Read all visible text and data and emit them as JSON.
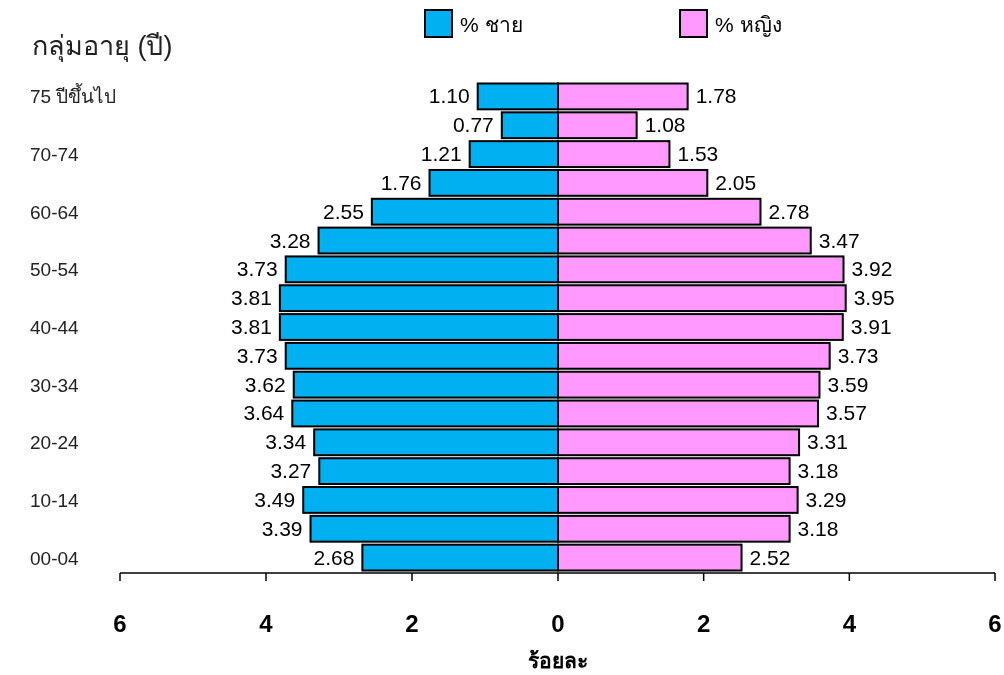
{
  "chart_data": [
    {
      "type": "bar",
      "orientation": "horizontal",
      "title": "กลุ่มอายุ (ปี)",
      "xlabel": "ร้อยละ",
      "categories": [
        "75 ปีขึ้นไป",
        null,
        "70-74",
        null,
        "60-64",
        null,
        "50-54",
        null,
        "40-44",
        null,
        "30-34",
        null,
        "20-24",
        null,
        "10-14",
        null,
        "00-04"
      ],
      "series": [
        {
          "name": "% ชาย",
          "color": "#00b0f0",
          "values": [
            1.1,
            0.77,
            1.21,
            1.76,
            2.55,
            3.28,
            3.73,
            3.81,
            3.81,
            3.73,
            3.62,
            3.64,
            3.34,
            3.27,
            3.49,
            3.39,
            2.68
          ],
          "value_labels": [
            "1.10",
            "0.77",
            "1.21",
            "1.76",
            "2.55",
            "3.28",
            "3.73",
            "3.81",
            "3.81",
            "3.73",
            "3.62",
            "3.64",
            "3.34",
            "3.27",
            "3.49",
            "3.39",
            "2.68"
          ]
        }
      ],
      "xlim": [
        6,
        0
      ],
      "xticks": [
        6,
        4,
        2,
        0
      ],
      "grid": false,
      "legend": "top"
    },
    {
      "type": "bar",
      "orientation": "horizontal",
      "categories": [
        null,
        null,
        null,
        null,
        null,
        null,
        null,
        null,
        null,
        null,
        null,
        null,
        null,
        null,
        null,
        null,
        null
      ],
      "series": [
        {
          "name": "% หญิง",
          "color": "#ff99ff",
          "values": [
            1.78,
            1.08,
            1.53,
            2.05,
            2.78,
            3.47,
            3.92,
            3.95,
            3.91,
            3.73,
            3.59,
            3.57,
            3.31,
            3.18,
            3.29,
            3.18,
            2.52
          ],
          "value_labels": [
            "1.78",
            "1.08",
            "1.53",
            "2.05",
            "2.78",
            "3.47",
            "3.92",
            "3.95",
            "3.91",
            "3.73",
            "3.59",
            "3.57",
            "3.31",
            "3.18",
            "3.29",
            "3.18",
            "2.52"
          ]
        }
      ],
      "xlim": [
        0,
        6
      ],
      "xticks": [
        2,
        4,
        6
      ],
      "grid": false,
      "legend": "top",
      "tick_labels": "x"
    }
  ]
}
